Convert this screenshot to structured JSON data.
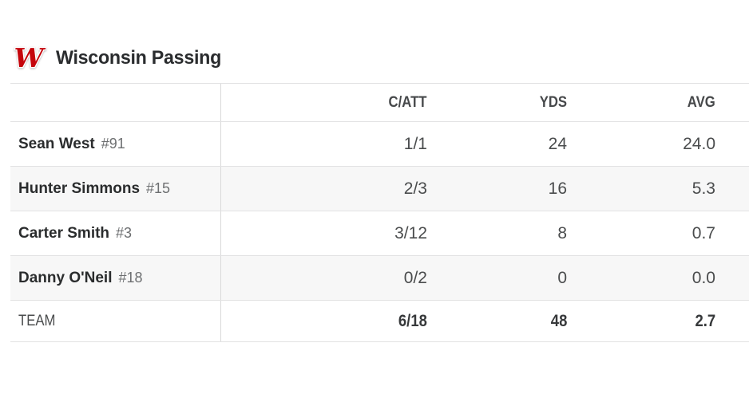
{
  "header": {
    "title": "Wisconsin Passing",
    "logo": "wisconsin-motion-w-icon",
    "logo_letter": "W"
  },
  "table": {
    "columns": {
      "catt": "C/ATT",
      "yds": "YDS",
      "avg": "AVG"
    },
    "players": [
      {
        "name": "Sean West",
        "jersey": "#91",
        "catt": "1/1",
        "yds": "24",
        "avg": "24.0"
      },
      {
        "name": "Hunter Simmons",
        "jersey": "#15",
        "catt": "2/3",
        "yds": "16",
        "avg": "5.3"
      },
      {
        "name": "Carter Smith",
        "jersey": "#3",
        "catt": "3/12",
        "yds": "8",
        "avg": "0.7"
      },
      {
        "name": "Danny O'Neil",
        "jersey": "#18",
        "catt": "0/2",
        "yds": "0",
        "avg": "0.0"
      }
    ],
    "totals": {
      "label": "TEAM",
      "catt": "6/18",
      "yds": "48",
      "avg": "2.7"
    }
  },
  "colors": {
    "brand_red": "#c5050c",
    "alt_row_bg": "#f7f7f7",
    "divider": "#e2e2e3",
    "text_dark": "#2a2c2d",
    "text_gray": "#4a4c4d"
  }
}
